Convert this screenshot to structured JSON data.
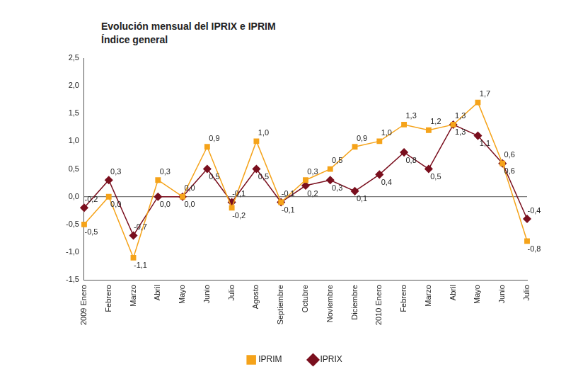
{
  "chart_data": {
    "type": "line",
    "title": "Evolución mensual del IPRIX e IPRIM",
    "subtitle": "Índice general",
    "categories": [
      "2009 Enero",
      "Febrero",
      "Marzo",
      "Abril",
      "Mayo",
      "Junio",
      "Julio",
      "Agosto",
      "Septiembre",
      "Octubre",
      "Noviembre",
      "Diciembre",
      "2010 Enero",
      "Febrero",
      "Marzo",
      "Abril",
      "Mayo",
      "Junio",
      "Julio"
    ],
    "series": [
      {
        "name": "IPRIM",
        "color": "#f5a31a",
        "marker": "square",
        "line_style": "solid",
        "values": [
          -0.5,
          0.0,
          -1.1,
          0.3,
          0.0,
          0.9,
          -0.2,
          1.0,
          -0.1,
          0.3,
          0.5,
          0.9,
          1.0,
          1.3,
          1.2,
          1.3,
          1.7,
          0.6,
          -0.8
        ],
        "value_labels": [
          "-0,5",
          "0,0",
          "-1,1",
          "0,3",
          "0,0",
          "0,9",
          "-0,2",
          "1,0",
          "-0,1",
          "0,3",
          "0,5",
          "0,9",
          "1,0",
          "1,3",
          "1,2",
          "1,3",
          "1,7",
          "0,6",
          "-0,8"
        ]
      },
      {
        "name": "IPRIX",
        "color": "#7a0f1e",
        "marker": "diamond",
        "line_style": "solid",
        "values": [
          -0.2,
          0.3,
          -0.7,
          0.0,
          0.0,
          0.5,
          -0.1,
          0.5,
          -0.1,
          0.2,
          0.3,
          0.1,
          0.4,
          0.8,
          0.5,
          1.3,
          1.1,
          0.6,
          -0.4
        ],
        "value_labels": [
          "-0,2",
          "0,3",
          "-0,7",
          "0,0",
          "0,0",
          "0,5",
          "-0,1",
          "0,5",
          "-0,1",
          "0,2",
          "0,3",
          "0,1",
          "0,4",
          "0,8",
          "0,5",
          "1,3",
          "1,1",
          "0,6",
          "-0,4"
        ]
      }
    ],
    "ylim": [
      -1.5,
      2.5
    ],
    "yticks": [
      {
        "value": -1.5,
        "label": "-1,5"
      },
      {
        "value": -1.0,
        "label": "-1,0"
      },
      {
        "value": -0.5,
        "label": "-0,5"
      },
      {
        "value": 0,
        "label": "0,0"
      },
      {
        "value": 0.5,
        "label": "0,5"
      },
      {
        "value": 1.0,
        "label": "1,0"
      },
      {
        "value": 1.5,
        "label": "1,5"
      },
      {
        "value": 2.0,
        "label": "2,0"
      },
      {
        "value": 2.5,
        "label": "2,5"
      }
    ],
    "grid": false,
    "legend": "bottom",
    "data_labels": true
  }
}
